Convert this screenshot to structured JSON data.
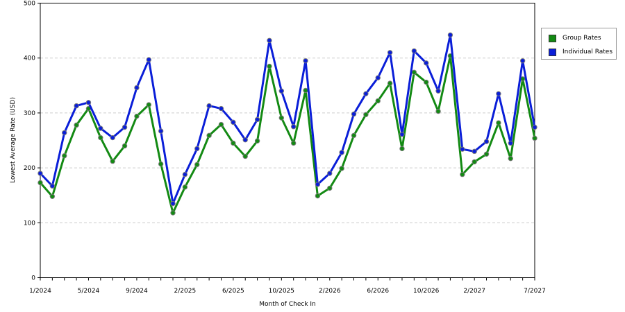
{
  "chart_data": {
    "type": "line",
    "xlabel": "Month of Check In",
    "ylabel": "Lowest Average Rate (USD)",
    "ylim": [
      0,
      500
    ],
    "yticks": [
      0,
      100,
      200,
      300,
      400,
      500
    ],
    "x_tick_labels": [
      {
        "index": 0,
        "label": "1/2024"
      },
      {
        "index": 4,
        "label": "5/2024"
      },
      {
        "index": 8,
        "label": "9/2024"
      },
      {
        "index": 12,
        "label": "2/2025"
      },
      {
        "index": 16,
        "label": "6/2025"
      },
      {
        "index": 20,
        "label": "10/2025"
      },
      {
        "index": 24,
        "label": "2/2026"
      },
      {
        "index": 28,
        "label": "6/2026"
      },
      {
        "index": 32,
        "label": "10/2026"
      },
      {
        "index": 36,
        "label": "2/2027"
      },
      {
        "index": 41,
        "label": "7/2027"
      }
    ],
    "grid": "horizontal dashed",
    "legend_position": "right",
    "series": [
      {
        "name": "Group Rates",
        "color": "#138a13",
        "values": [
          173,
          148,
          222,
          278,
          308,
          255,
          212,
          240,
          294,
          315,
          207,
          118,
          165,
          206,
          259,
          279,
          245,
          221,
          249,
          385,
          291,
          245,
          341,
          149,
          163,
          199,
          259,
          297,
          322,
          354,
          235,
          374,
          356,
          303,
          404,
          188,
          211,
          225,
          282,
          217,
          362,
          254
        ]
      },
      {
        "name": "Individual Rates",
        "color": "#0a1ed8",
        "values": [
          190,
          167,
          264,
          313,
          319,
          272,
          255,
          274,
          346,
          397,
          267,
          135,
          188,
          235,
          313,
          308,
          283,
          251,
          288,
          432,
          340,
          275,
          395,
          170,
          190,
          228,
          298,
          335,
          364,
          410,
          261,
          413,
          391,
          340,
          442,
          234,
          230,
          248,
          335,
          245,
          395,
          274
        ]
      }
    ]
  }
}
